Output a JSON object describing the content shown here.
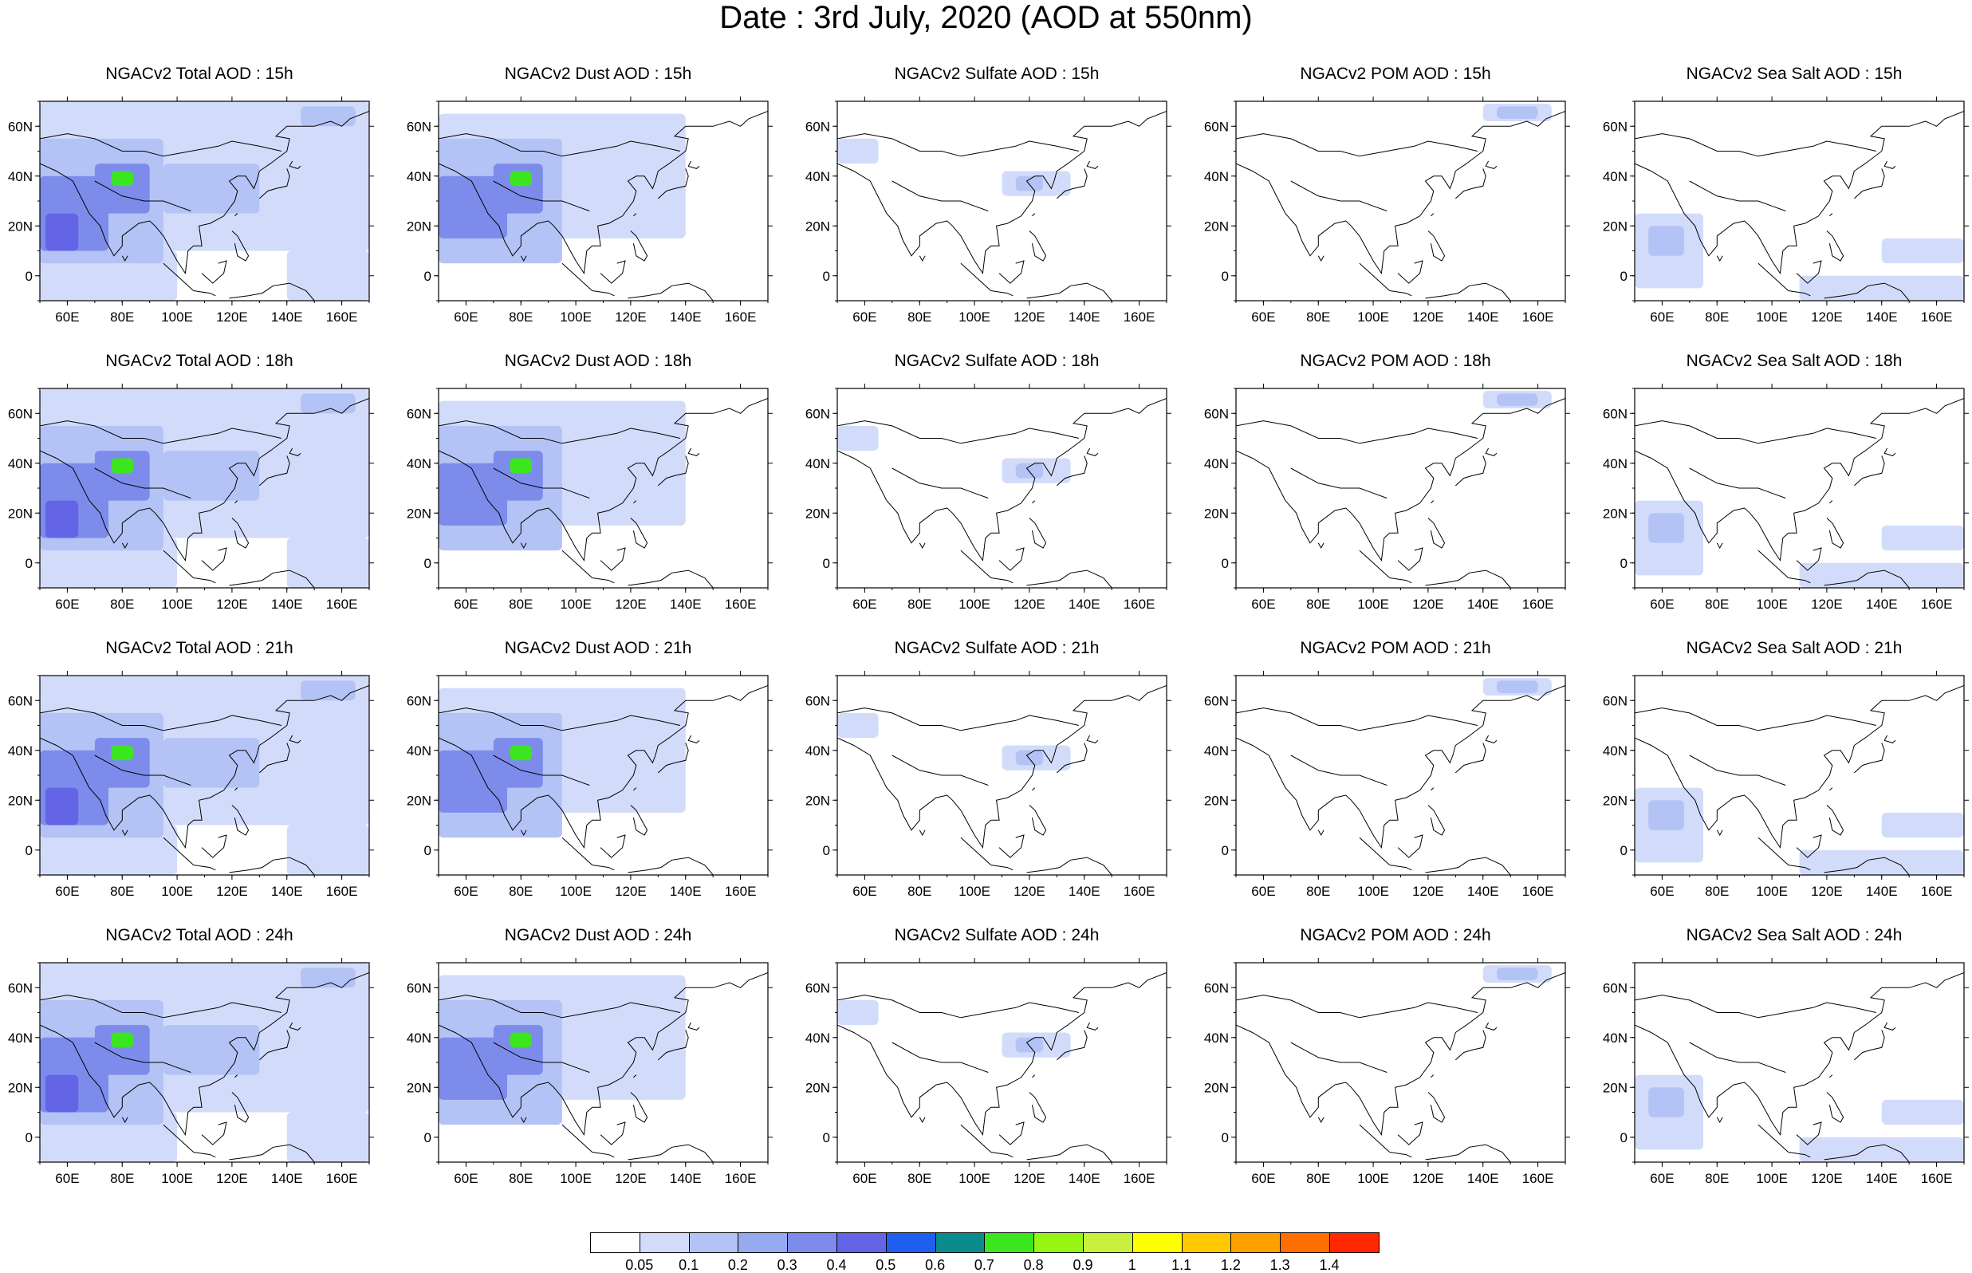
{
  "title": "Date : 3rd July, 2020 (AOD at 550nm)",
  "lon_ticks": [
    "60E",
    "80E",
    "100E",
    "120E",
    "140E",
    "160E"
  ],
  "lat_ticks": [
    "60N",
    "40N",
    "20N",
    "0"
  ],
  "domain": {
    "lon": [
      50,
      170
    ],
    "lat": [
      -10,
      70
    ]
  },
  "panels": [
    {
      "title": "NGACv2 Total AOD : 15h",
      "species": "total",
      "hour": "15h"
    },
    {
      "title": "NGACv2 Dust AOD : 15h",
      "species": "dust",
      "hour": "15h"
    },
    {
      "title": "NGACv2 Sulfate AOD : 15h",
      "species": "sulfate",
      "hour": "15h"
    },
    {
      "title": "NGACv2 POM AOD : 15h",
      "species": "pom",
      "hour": "15h"
    },
    {
      "title": "NGACv2 Sea Salt AOD : 15h",
      "species": "seasalt",
      "hour": "15h"
    },
    {
      "title": "NGACv2 Total AOD : 18h",
      "species": "total",
      "hour": "18h"
    },
    {
      "title": "NGACv2 Dust AOD : 18h",
      "species": "dust",
      "hour": "18h"
    },
    {
      "title": "NGACv2 Sulfate AOD : 18h",
      "species": "sulfate",
      "hour": "18h"
    },
    {
      "title": "NGACv2 POM AOD : 18h",
      "species": "pom",
      "hour": "18h"
    },
    {
      "title": "NGACv2 Sea Salt AOD : 18h",
      "species": "seasalt",
      "hour": "18h"
    },
    {
      "title": "NGACv2 Total AOD : 21h",
      "species": "total",
      "hour": "21h"
    },
    {
      "title": "NGACv2 Dust AOD : 21h",
      "species": "dust",
      "hour": "21h"
    },
    {
      "title": "NGACv2 Sulfate AOD : 21h",
      "species": "sulfate",
      "hour": "21h"
    },
    {
      "title": "NGACv2 POM AOD : 21h",
      "species": "pom",
      "hour": "21h"
    },
    {
      "title": "NGACv2 Sea Salt AOD : 21h",
      "species": "seasalt",
      "hour": "21h"
    },
    {
      "title": "NGACv2 Total AOD : 24h",
      "species": "total",
      "hour": "24h"
    },
    {
      "title": "NGACv2 Dust AOD : 24h",
      "species": "dust",
      "hour": "24h"
    },
    {
      "title": "NGACv2 Sulfate AOD : 24h",
      "species": "sulfate",
      "hour": "24h"
    },
    {
      "title": "NGACv2 POM AOD : 24h",
      "species": "pom",
      "hour": "24h"
    },
    {
      "title": "NGACv2 Sea Salt  AOD : 24h",
      "species": "seasalt",
      "hour": "24h"
    }
  ],
  "colorbar": {
    "labels": [
      "0.05",
      "0.1",
      "0.2",
      "0.3",
      "0.4",
      "0.5",
      "0.6",
      "0.7",
      "0.8",
      "0.9",
      "1",
      "1.1",
      "1.2",
      "1.3",
      "1.4"
    ],
    "colors": [
      "#ffffff",
      "#d2dcfa",
      "#b4c3f5",
      "#96aaf0",
      "#7d8ceb",
      "#6464e6",
      "#1e5ff0",
      "#0a8c8c",
      "#3ce61e",
      "#96f514",
      "#c8f03c",
      "#ffff00",
      "#ffc800",
      "#ffa000",
      "#ff6e00",
      "#ff2800"
    ]
  },
  "map_features": {
    "plume_colors": {
      "light": "#d2dcfa",
      "medium": "#b4c3f5",
      "strong": "#7d8ceb",
      "dense": "#6464e6",
      "peak": "#3ce61e",
      "coast": "#000000"
    },
    "total": [
      {
        "lon": [
          50,
          170
        ],
        "lat": [
          10,
          70
        ],
        "level": "light"
      },
      {
        "lon": [
          50,
          100
        ],
        "lat": [
          -10,
          10
        ],
        "level": "light"
      },
      {
        "lon": [
          140,
          170
        ],
        "lat": [
          -10,
          10
        ],
        "level": "light"
      },
      {
        "lon": [
          50,
          95
        ],
        "lat": [
          5,
          55
        ],
        "level": "medium"
      },
      {
        "lon": [
          95,
          130
        ],
        "lat": [
          25,
          45
        ],
        "level": "medium"
      },
      {
        "lon": [
          145,
          165
        ],
        "lat": [
          60,
          68
        ],
        "level": "medium"
      },
      {
        "lon": [
          50,
          75
        ],
        "lat": [
          10,
          40
        ],
        "level": "strong"
      },
      {
        "lon": [
          70,
          90
        ],
        "lat": [
          25,
          45
        ],
        "level": "strong"
      },
      {
        "lon": [
          52,
          64
        ],
        "lat": [
          10,
          25
        ],
        "level": "dense"
      },
      {
        "lon": [
          76,
          84
        ],
        "lat": [
          36,
          42
        ],
        "level": "peak"
      }
    ],
    "dust": [
      {
        "lon": [
          50,
          140
        ],
        "lat": [
          15,
          65
        ],
        "level": "light"
      },
      {
        "lon": [
          50,
          95
        ],
        "lat": [
          5,
          55
        ],
        "level": "medium"
      },
      {
        "lon": [
          50,
          75
        ],
        "lat": [
          15,
          40
        ],
        "level": "strong"
      },
      {
        "lon": [
          70,
          88
        ],
        "lat": [
          25,
          45
        ],
        "level": "strong"
      },
      {
        "lon": [
          76,
          84
        ],
        "lat": [
          36,
          42
        ],
        "level": "peak"
      }
    ],
    "sulfate": [
      {
        "lon": [
          50,
          65
        ],
        "lat": [
          45,
          55
        ],
        "level": "light"
      },
      {
        "lon": [
          110,
          135
        ],
        "lat": [
          32,
          42
        ],
        "level": "light"
      },
      {
        "lon": [
          115,
          125
        ],
        "lat": [
          34,
          40
        ],
        "level": "medium"
      }
    ],
    "pom": [
      {
        "lon": [
          140,
          165
        ],
        "lat": [
          62,
          69
        ],
        "level": "light"
      },
      {
        "lon": [
          145,
          160
        ],
        "lat": [
          63,
          68
        ],
        "level": "medium"
      }
    ],
    "seasalt": [
      {
        "lon": [
          50,
          75
        ],
        "lat": [
          -5,
          25
        ],
        "level": "light"
      },
      {
        "lon": [
          110,
          170
        ],
        "lat": [
          -10,
          0
        ],
        "level": "light"
      },
      {
        "lon": [
          140,
          170
        ],
        "lat": [
          5,
          15
        ],
        "level": "light"
      },
      {
        "lon": [
          55,
          68
        ],
        "lat": [
          8,
          20
        ],
        "level": "medium"
      }
    ]
  }
}
